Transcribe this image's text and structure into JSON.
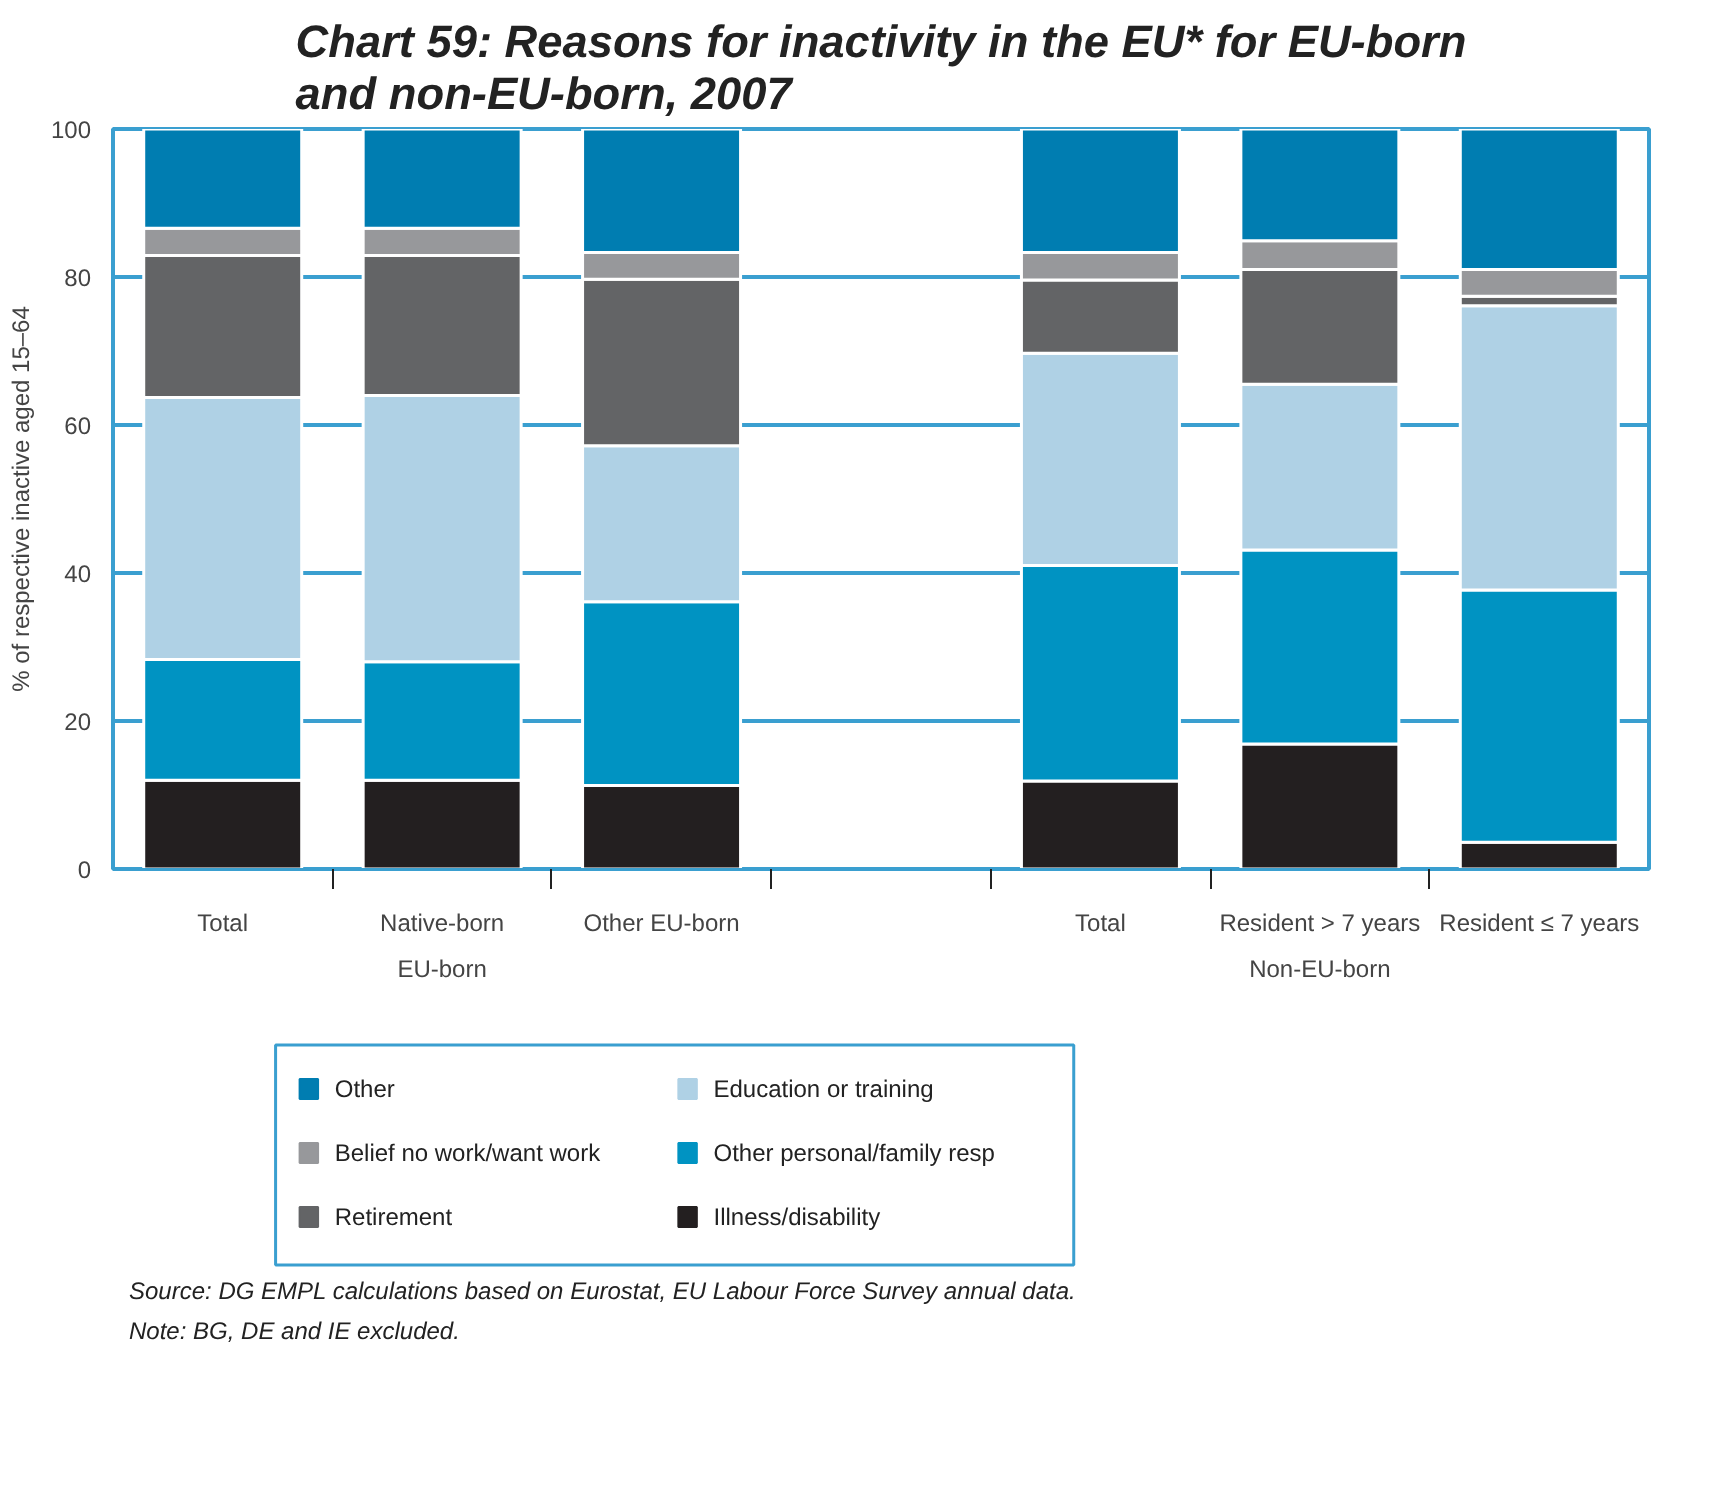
{
  "chart_data": {
    "type": "bar",
    "stacked": true,
    "title": "Chart 59: Reasons for inactivity in the EU* for EU-born and non-EU-born, 2007",
    "ylabel": "% of respective inactive aged 15–64",
    "categories": [
      "Total",
      "Native-born",
      "Other EU-born",
      null,
      "Total",
      "Resident > 7 years",
      "Resident ≤ 7 years"
    ],
    "series": [
      {
        "name": "Illness/disability",
        "color": "#231f20",
        "values": [
          12.0,
          12.0,
          11.3,
          null,
          11.9,
          16.9,
          3.6
        ]
      },
      {
        "name": "Other personal/family resp",
        "color": "#0093c2",
        "values": [
          16.3,
          16.0,
          24.8,
          null,
          29.1,
          26.2,
          34.1
        ]
      },
      {
        "name": "Education or training",
        "color": "#afd1e5",
        "values": [
          35.4,
          36.0,
          21.1,
          null,
          28.7,
          22.4,
          38.4
        ]
      },
      {
        "name": "Retirement",
        "color": "#636466",
        "values": [
          19.2,
          18.9,
          22.5,
          null,
          9.9,
          15.5,
          1.3
        ]
      },
      {
        "name": "Belief no work/want work",
        "color": "#97989b",
        "values": [
          3.7,
          3.7,
          3.6,
          null,
          3.7,
          3.9,
          3.6
        ]
      },
      {
        "name": "Other",
        "color": "#007db1",
        "values": [
          13.4,
          13.4,
          16.7,
          null,
          16.7,
          15.1,
          19.0
        ]
      }
    ],
    "ylim": [
      0,
      100
    ],
    "yticks": [
      0,
      20,
      40,
      60,
      80,
      100
    ],
    "grid": "y",
    "legend": "bottom",
    "annotations": [
      "EU-born",
      "Non-EU-born",
      "Source: DG EMPL calculations based on Eurostat, EU Labour Force Survey annual data.",
      "Note: BG, DE and IE excluded."
    ]
  }
}
